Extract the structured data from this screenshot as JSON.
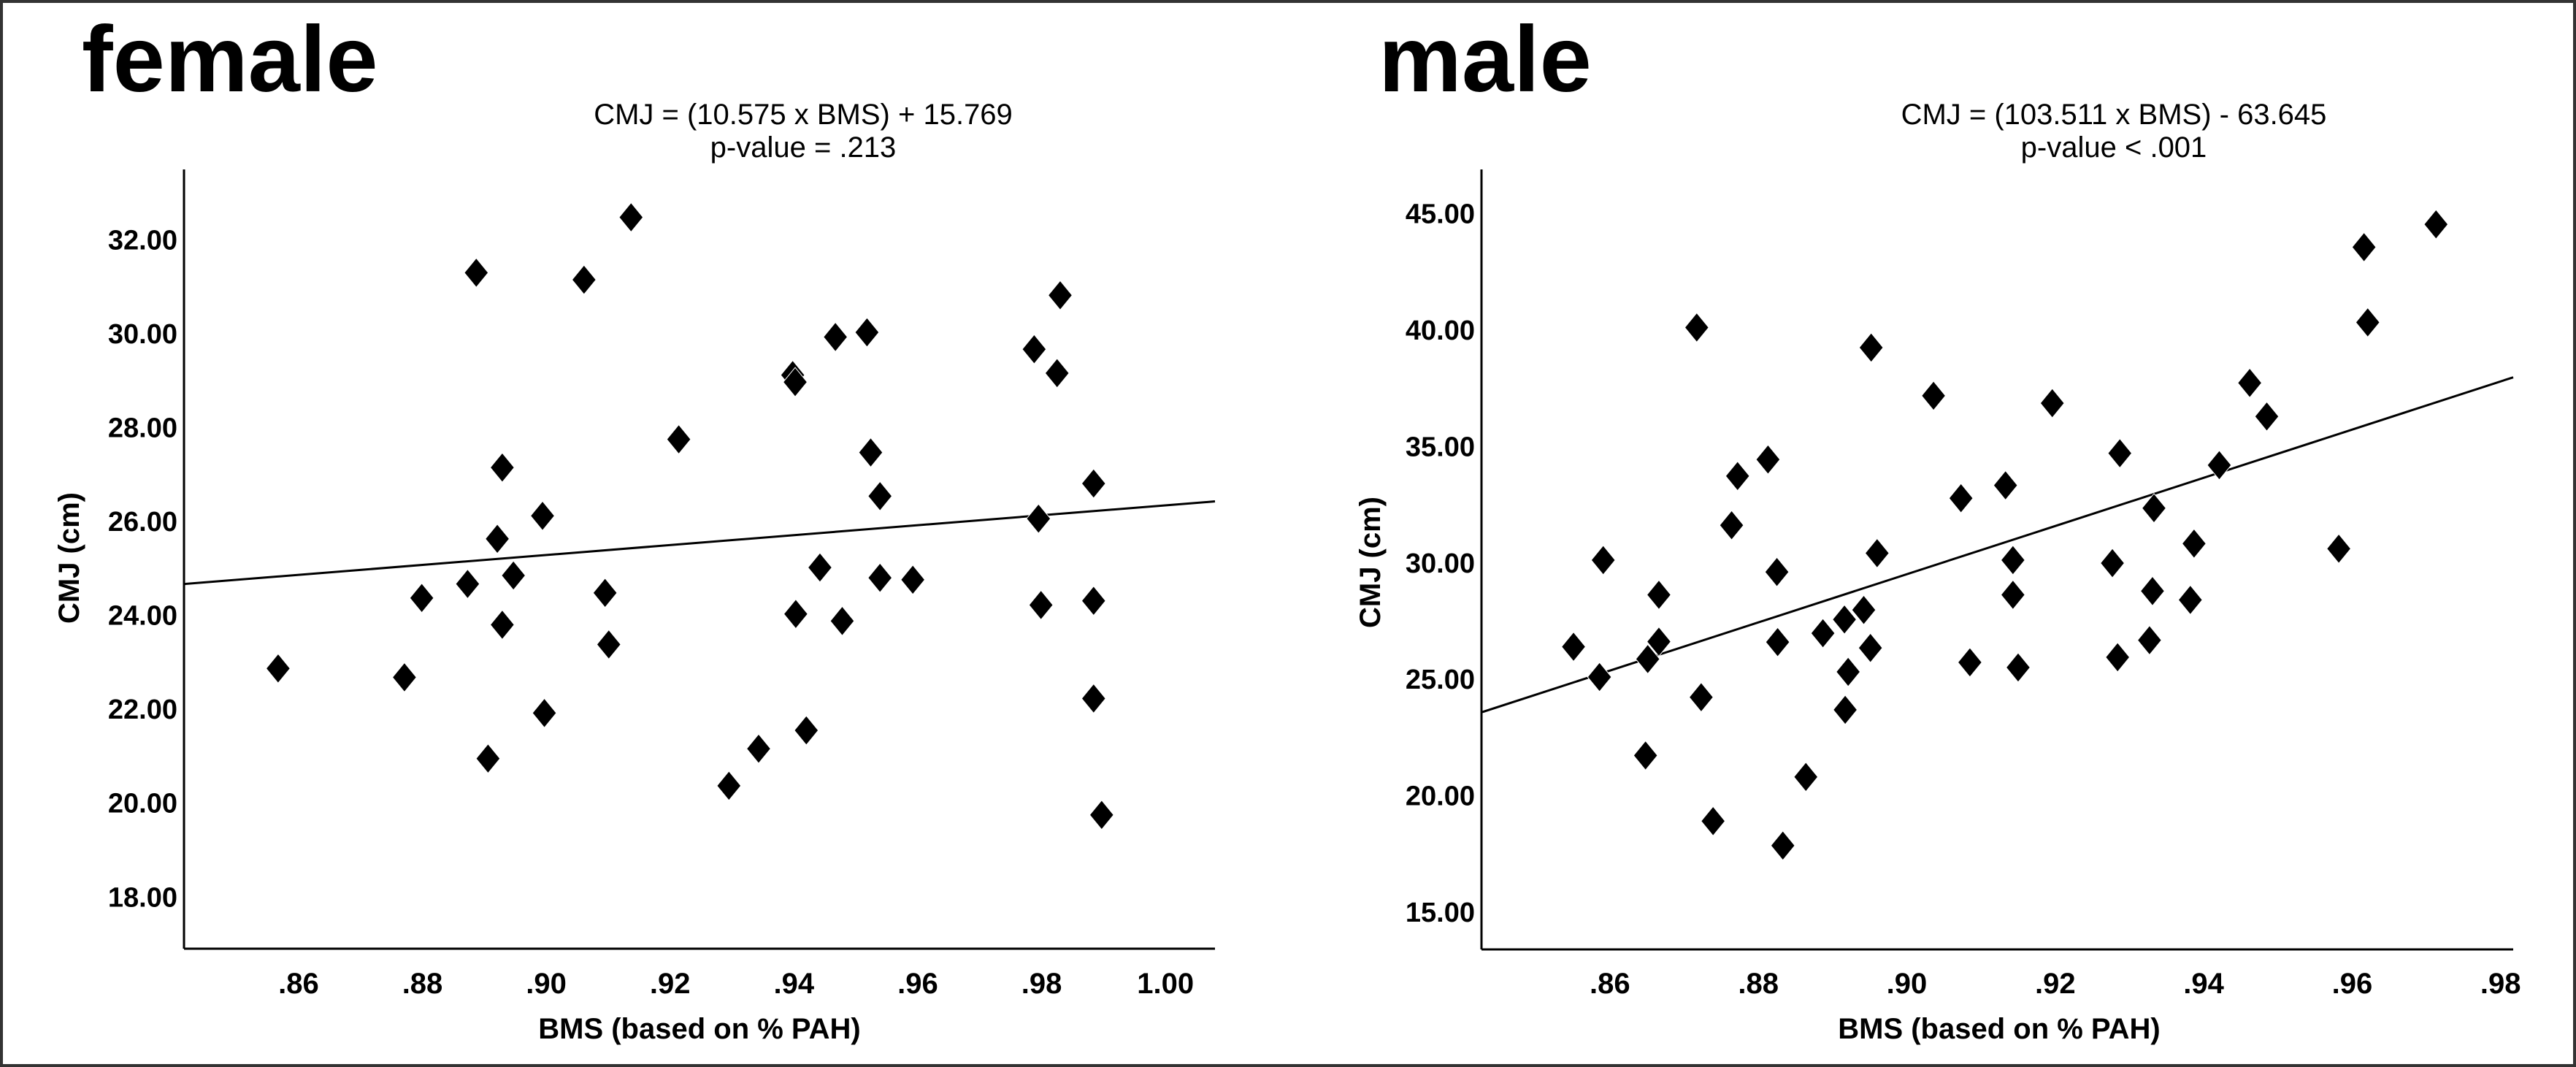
{
  "chart_data": [
    {
      "type": "scatter",
      "panel": "female",
      "title": "female",
      "equation": "CMJ = (10.575 x BMS) + 15.769",
      "p_value": "p-value = .213",
      "xlabel": "BMS (based on % PAH)",
      "ylabel": "CMJ (cm)",
      "xlim": [
        0.8415,
        1.008
      ],
      "ylim": [
        16.9,
        33.5
      ],
      "xticks": [
        0.86,
        0.88,
        0.9,
        0.92,
        0.94,
        0.96,
        0.98,
        1.0
      ],
      "xtick_labels": [
        ".86",
        ".88",
        ".90",
        ".92",
        ".94",
        ".96",
        ".98",
        "1.00"
      ],
      "yticks": [
        18,
        20,
        22,
        24,
        26,
        28,
        30,
        32
      ],
      "ytick_labels": [
        "18.00",
        "20.00",
        "22.00",
        "24.00",
        "26.00",
        "28.00",
        "30.00",
        "32.00"
      ],
      "fit": {
        "slope": 10.575,
        "intercept": 15.769
      },
      "marker": "diamond",
      "grid": false,
      "points": [
        [
          0.8567,
          22.87
        ],
        [
          0.8771,
          22.68
        ],
        [
          0.8799,
          24.37
        ],
        [
          0.8873,
          24.67
        ],
        [
          0.8887,
          31.3
        ],
        [
          0.8906,
          20.95
        ],
        [
          0.8921,
          25.63
        ],
        [
          0.8929,
          27.15
        ],
        [
          0.8929,
          23.8
        ],
        [
          0.8947,
          24.85
        ],
        [
          0.8994,
          26.12
        ],
        [
          0.8997,
          21.92
        ],
        [
          0.9061,
          31.15
        ],
        [
          0.9095,
          24.48
        ],
        [
          0.9101,
          23.38
        ],
        [
          0.9137,
          32.48
        ],
        [
          0.9214,
          27.75
        ],
        [
          0.9295,
          20.37
        ],
        [
          0.9343,
          21.16
        ],
        [
          0.9398,
          29.12
        ],
        [
          0.9402,
          28.97
        ],
        [
          0.9403,
          24.03
        ],
        [
          0.942,
          21.55
        ],
        [
          0.9442,
          25.02
        ],
        [
          0.9467,
          29.93
        ],
        [
          0.9478,
          23.88
        ],
        [
          0.9518,
          30.03
        ],
        [
          0.9524,
          27.47
        ],
        [
          0.9539,
          26.54
        ],
        [
          0.9539,
          24.8
        ],
        [
          0.9592,
          24.76
        ],
        [
          0.9788,
          29.67
        ],
        [
          0.9795,
          26.06
        ],
        [
          0.9799,
          24.22
        ],
        [
          0.9825,
          29.16
        ],
        [
          0.983,
          30.82
        ],
        [
          0.9884,
          26.81
        ],
        [
          0.9884,
          24.31
        ],
        [
          0.9884,
          22.23
        ],
        [
          0.9897,
          19.75
        ]
      ]
    },
    {
      "type": "scatter",
      "panel": "male",
      "title": "male",
      "equation": "CMJ = (103.511 x BMS) - 63.645",
      "p_value": "p-value < .001",
      "xlabel": "BMS (based on % PAH)",
      "ylabel": "CMJ (cm)",
      "xlim": [
        0.8427,
        0.9817
      ],
      "ylim": [
        13.4,
        46.9
      ],
      "xticks": [
        0.86,
        0.88,
        0.9,
        0.92,
        0.94,
        0.96,
        0.98
      ],
      "xtick_labels": [
        ".86",
        ".88",
        ".90",
        ".92",
        ".94",
        ".96",
        ".98"
      ],
      "yticks": [
        15,
        20,
        25,
        30,
        35,
        40,
        45
      ],
      "ytick_labels": [
        "15.00",
        "20.00",
        "25.00",
        "30.00",
        "35.00",
        "40.00",
        "45.00"
      ],
      "fit": {
        "slope": 103.511,
        "intercept": -63.645
      },
      "marker": "diamond",
      "grid": false,
      "points": [
        [
          0.8551,
          26.4
        ],
        [
          0.8586,
          25.1
        ],
        [
          0.8591,
          30.12
        ],
        [
          0.8648,
          21.73
        ],
        [
          0.8651,
          25.87
        ],
        [
          0.8666,
          28.63
        ],
        [
          0.8666,
          26.62
        ],
        [
          0.8717,
          40.11
        ],
        [
          0.8723,
          24.23
        ],
        [
          0.8739,
          18.91
        ],
        [
          0.8764,
          31.62
        ],
        [
          0.8772,
          33.73
        ],
        [
          0.8813,
          34.44
        ],
        [
          0.8825,
          29.61
        ],
        [
          0.8826,
          26.6
        ],
        [
          0.8833,
          17.86
        ],
        [
          0.8864,
          20.81
        ],
        [
          0.8887,
          26.98
        ],
        [
          0.8916,
          27.57
        ],
        [
          0.8921,
          25.32
        ],
        [
          0.8917,
          23.69
        ],
        [
          0.8942,
          27.98
        ],
        [
          0.8951,
          26.35
        ],
        [
          0.8952,
          39.25
        ],
        [
          0.896,
          30.42
        ],
        [
          0.9036,
          37.18
        ],
        [
          0.9073,
          32.78
        ],
        [
          0.9085,
          25.73
        ],
        [
          0.9133,
          33.33
        ],
        [
          0.9143,
          30.12
        ],
        [
          0.9143,
          28.63
        ],
        [
          0.915,
          25.51
        ],
        [
          0.9196,
          36.86
        ],
        [
          0.9277,
          29.99
        ],
        [
          0.9284,
          25.95
        ],
        [
          0.9287,
          34.71
        ],
        [
          0.9327,
          26.68
        ],
        [
          0.9331,
          28.79
        ],
        [
          0.9333,
          32.35
        ],
        [
          0.9382,
          28.41
        ],
        [
          0.9387,
          30.83
        ],
        [
          0.9421,
          34.2
        ],
        [
          0.9462,
          37.73
        ],
        [
          0.9485,
          36.29
        ],
        [
          0.9582,
          30.61
        ],
        [
          0.9616,
          43.56
        ],
        [
          0.9621,
          40.33
        ],
        [
          0.9713,
          44.54
        ]
      ]
    }
  ]
}
